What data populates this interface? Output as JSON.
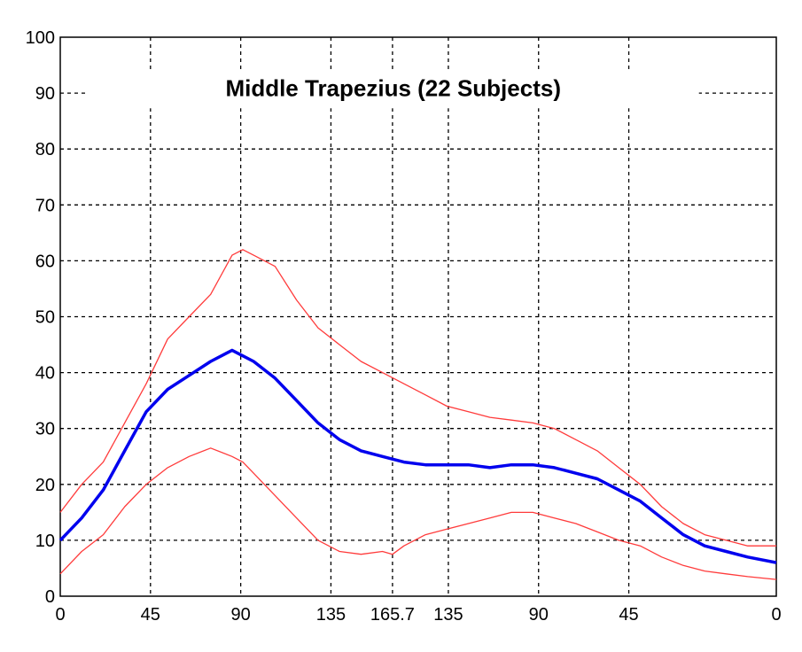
{
  "chart_data": {
    "type": "line",
    "title": "Middle Trapezius (22 Subjects)",
    "xlabel": "",
    "ylabel": "",
    "xlim": [
      0,
      100
    ],
    "ylim": [
      0,
      100
    ],
    "grid": true,
    "x_tick_positions": [
      0,
      12.6,
      25.2,
      37.8,
      46.4,
      54.2,
      66.8,
      79.4,
      100
    ],
    "x_tick_labels": [
      "0",
      "45",
      "90",
      "135",
      "165.7",
      "135",
      "90",
      "45",
      "0"
    ],
    "y_ticks": [
      0,
      10,
      20,
      30,
      40,
      50,
      60,
      70,
      80,
      90,
      100
    ],
    "y_tick_labels": [
      "0",
      "10",
      "20",
      "30",
      "40",
      "50",
      "60",
      "70",
      "80",
      "90",
      "100"
    ],
    "series": [
      {
        "color": "#ff3b3b",
        "x": [
          0,
          3,
          6,
          9,
          12,
          15,
          18,
          21,
          24,
          25.5,
          27,
          30,
          33,
          36,
          39,
          42,
          45,
          48,
          51,
          54,
          57,
          60,
          63,
          66,
          69,
          72,
          75,
          78,
          81,
          84,
          87,
          90,
          93,
          96,
          100
        ],
        "y": [
          15,
          20,
          24,
          31,
          38,
          46,
          50,
          54,
          61,
          62,
          61,
          59,
          53,
          48,
          45,
          42,
          40,
          38,
          36,
          34,
          33,
          32,
          31.5,
          31,
          30,
          28,
          26,
          23,
          20,
          16,
          13,
          11,
          10,
          9,
          9
        ]
      },
      {
        "color": "#0000ee",
        "x": [
          0,
          3,
          6,
          9,
          12,
          15,
          18,
          21,
          24,
          25.5,
          27,
          30,
          33,
          36,
          39,
          42,
          45,
          48,
          51,
          54,
          57,
          60,
          63,
          66,
          69,
          72,
          75,
          78,
          81,
          84,
          87,
          90,
          93,
          96,
          100
        ],
        "y": [
          10,
          14,
          19,
          26,
          33,
          37,
          39.5,
          42,
          44,
          43,
          42,
          39,
          35,
          31,
          28,
          26,
          25,
          24,
          23.5,
          23.5,
          23.5,
          23,
          23.5,
          23.5,
          23,
          22,
          21,
          19,
          17,
          14,
          11,
          9,
          8,
          7,
          6
        ]
      },
      {
        "color": "#ff3b3b",
        "x": [
          0,
          3,
          6,
          9,
          12,
          15,
          18,
          21,
          24,
          25.5,
          27,
          30,
          33,
          36,
          39,
          42,
          45,
          46.4,
          48,
          51,
          54,
          57,
          60,
          63,
          66,
          69,
          72,
          75,
          78,
          81,
          84,
          87,
          90,
          93,
          96,
          100
        ],
        "y": [
          4,
          8,
          11,
          16,
          20,
          23,
          25,
          26.5,
          25,
          24,
          22,
          18,
          14,
          10,
          8,
          7.5,
          8,
          7.5,
          9,
          11,
          12,
          13,
          14,
          15,
          15,
          14,
          13,
          11.5,
          10,
          9,
          7,
          5.5,
          4.5,
          4,
          3.5,
          3
        ]
      }
    ]
  }
}
